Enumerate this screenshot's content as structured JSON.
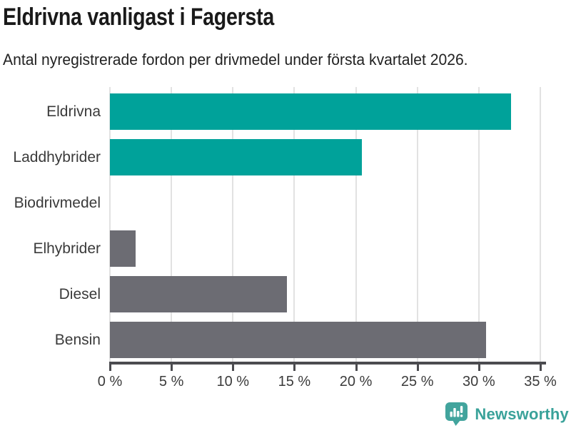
{
  "header": {
    "title": "Eldrivna vanligast i Fagersta",
    "subtitle": "Antal nyregistrerade fordon per drivmedel under första kvartalet 2026."
  },
  "chart_data": {
    "type": "bar",
    "orientation": "horizontal",
    "title": "Eldrivna vanligast i Fagersta",
    "subtitle": "Antal nyregistrerade fordon per drivmedel under första kvartalet 2026.",
    "categories": [
      "Eldrivna",
      "Laddhybrider",
      "Biodrivmedel",
      "Elhybrider",
      "Diesel",
      "Bensin"
    ],
    "values": [
      32.6,
      20.5,
      0,
      2.1,
      14.4,
      30.6
    ],
    "unit": "%",
    "bar_colors": [
      "#00a29a",
      "#00a29a",
      "#6c6c73",
      "#6c6c73",
      "#6c6c73",
      "#6c6c73"
    ],
    "xlim": [
      0,
      35
    ],
    "xticks": [
      0,
      5,
      10,
      15,
      20,
      25,
      30,
      35
    ],
    "xtick_labels": [
      "0 %",
      "5 %",
      "10 %",
      "15 %",
      "20 %",
      "25 %",
      "30 %",
      "35 %"
    ],
    "xlabel": "",
    "ylabel": "",
    "grid": "vertical-only",
    "legend": "none"
  },
  "colors": {
    "accent_teal": "#00a29a",
    "bar_gray": "#6c6c73",
    "gridline": "#e2e2e2",
    "axis": "#4b4b4f",
    "text_dark": "#1a1a1a",
    "brand_teal": "#42a49d"
  },
  "footer": {
    "brand_name": "Newsworthy",
    "logo_icon": "bar-chart-speech-bubble-icon"
  }
}
